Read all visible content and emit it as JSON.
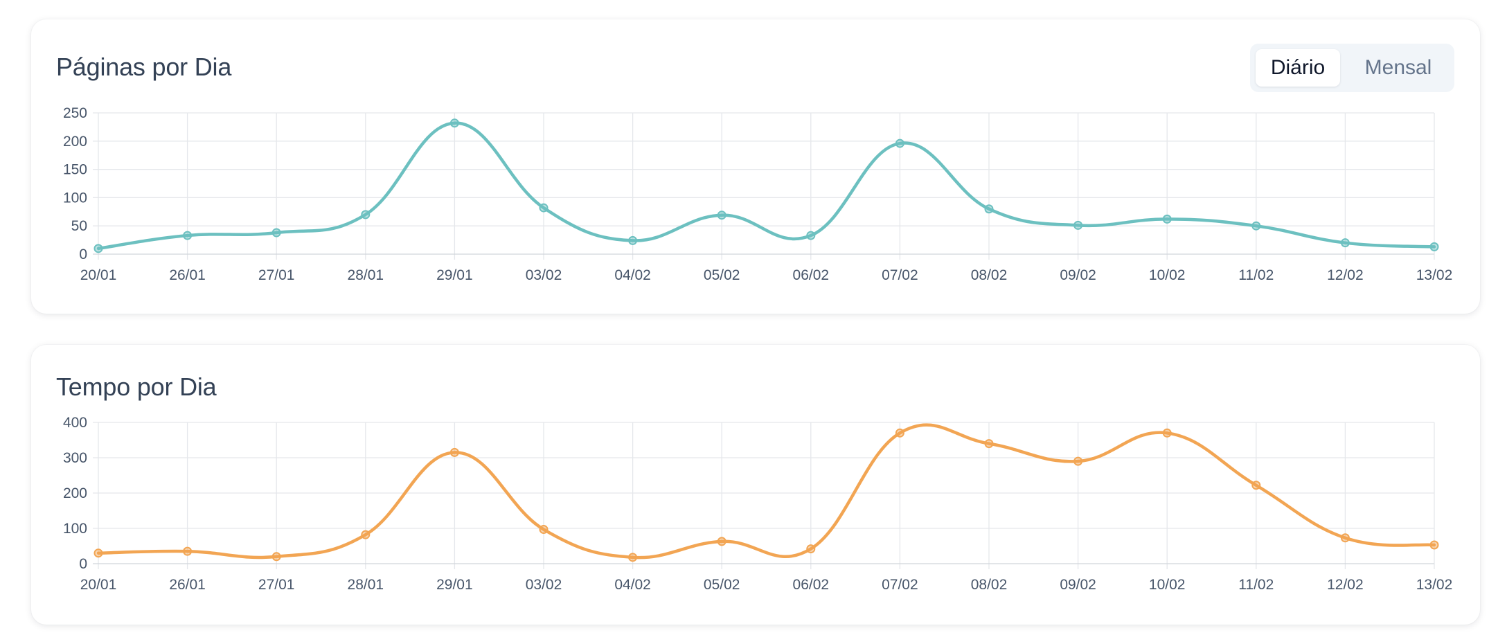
{
  "view_toggle": {
    "daily_label": "Diário",
    "monthly_label": "Mensal",
    "selected": "daily"
  },
  "colors": {
    "pages_line": "#6cc0c0",
    "time_line": "#f2a553",
    "grid": "#e5e7eb",
    "axis_text": "#475569",
    "title_text": "#334155"
  },
  "chart_data": [
    {
      "type": "line",
      "title": "Páginas por Dia",
      "xlabel": "",
      "ylabel": "",
      "categories": [
        "20/01",
        "26/01",
        "27/01",
        "28/01",
        "29/01",
        "03/02",
        "04/02",
        "05/02",
        "06/02",
        "07/02",
        "08/02",
        "09/02",
        "10/02",
        "11/02",
        "12/02",
        "13/02"
      ],
      "series": [
        {
          "values": [
            10,
            33,
            38,
            70,
            232,
            82,
            24,
            69,
            33,
            196,
            80,
            51,
            62,
            50,
            20,
            13
          ]
        }
      ],
      "ylim": [
        0,
        250
      ],
      "yticks": [
        0,
        50,
        100,
        150,
        200,
        250
      ],
      "grid": true,
      "smooth": true,
      "show_points": true
    },
    {
      "type": "line",
      "title": "Tempo por Dia",
      "xlabel": "",
      "ylabel": "",
      "categories": [
        "20/01",
        "26/01",
        "27/01",
        "28/01",
        "29/01",
        "03/02",
        "04/02",
        "05/02",
        "06/02",
        "07/02",
        "08/02",
        "09/02",
        "10/02",
        "11/02",
        "12/02",
        "13/02"
      ],
      "series": [
        {
          "values": [
            30,
            35,
            20,
            82,
            315,
            97,
            18,
            63,
            42,
            370,
            340,
            290,
            370,
            222,
            73,
            53
          ]
        }
      ],
      "ylim": [
        0,
        400
      ],
      "yticks": [
        0,
        100,
        200,
        300,
        400
      ],
      "grid": true,
      "smooth": true,
      "show_points": true
    }
  ]
}
